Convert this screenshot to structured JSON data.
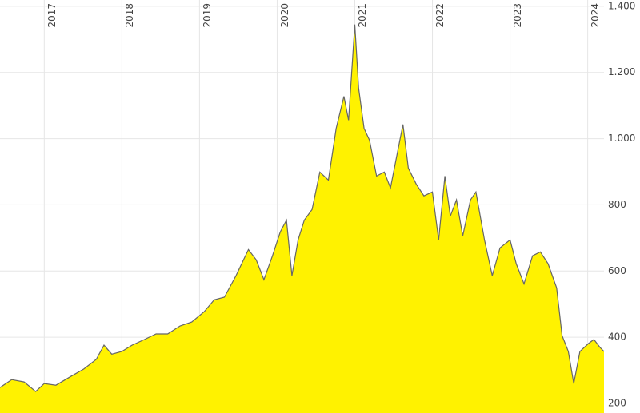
{
  "chart_data": {
    "type": "area",
    "x": [
      2016.43,
      2016.58,
      2016.74,
      2016.89,
      2017.0,
      2017.15,
      2017.36,
      2017.51,
      2017.67,
      2017.77,
      2017.87,
      2018.0,
      2018.13,
      2018.29,
      2018.44,
      2018.59,
      2018.75,
      2018.9,
      2019.06,
      2019.19,
      2019.32,
      2019.47,
      2019.63,
      2019.73,
      2019.83,
      2019.94,
      2020.04,
      2020.12,
      2020.19,
      2020.27,
      2020.35,
      2020.45,
      2020.55,
      2020.66,
      2020.76,
      2020.86,
      2020.92,
      2021.0,
      2021.05,
      2021.12,
      2021.19,
      2021.28,
      2021.38,
      2021.46,
      2021.53,
      2021.62,
      2021.69,
      2021.79,
      2021.89,
      2022.0,
      2022.08,
      2022.16,
      2022.23,
      2022.31,
      2022.39,
      2022.49,
      2022.56,
      2022.67,
      2022.77,
      2022.87,
      2023.0,
      2023.08,
      2023.18,
      2023.29,
      2023.39,
      2023.49,
      2023.6,
      2023.67,
      2023.75,
      2023.82,
      2023.9,
      2024.01,
      2024.08,
      2024.16,
      2024.21
    ],
    "series": [
      {
        "color": "#fff200",
        "line_color": "#666666",
        "values": [
          248,
          272,
          265,
          236,
          260,
          255,
          284,
          304,
          333,
          376,
          349,
          357,
          376,
          393,
          410,
          410,
          434,
          446,
          477,
          513,
          521,
          586,
          665,
          634,
          574,
          646,
          718,
          754,
          586,
          694,
          754,
          786,
          899,
          875,
          1031,
          1128,
          1056,
          1345,
          1152,
          1031,
          995,
          887,
          899,
          851,
          935,
          1043,
          911,
          863,
          827,
          839,
          694,
          887,
          766,
          815,
          706,
          815,
          839,
          694,
          586,
          670,
          694,
          622,
          561,
          646,
          658,
          622,
          549,
          405,
          357,
          260,
          357,
          381,
          393,
          369,
          357
        ]
      }
    ],
    "xlim": [
      2016.43,
      2024.21
    ],
    "xticks": [
      2017,
      2018,
      2019,
      2020,
      2021,
      2022,
      2023,
      2024
    ],
    "ylim": [
      171,
      1419
    ],
    "yticks": [
      {
        "value": 200,
        "label": "200"
      },
      {
        "value": 400,
        "label": "400"
      },
      {
        "value": 600,
        "label": "600"
      },
      {
        "value": 800,
        "label": "800"
      },
      {
        "value": 1000,
        "label": "1.000"
      },
      {
        "value": 1200,
        "label": "1.200"
      },
      {
        "value": 1400,
        "label": "1.400"
      }
    ],
    "grid": true
  }
}
